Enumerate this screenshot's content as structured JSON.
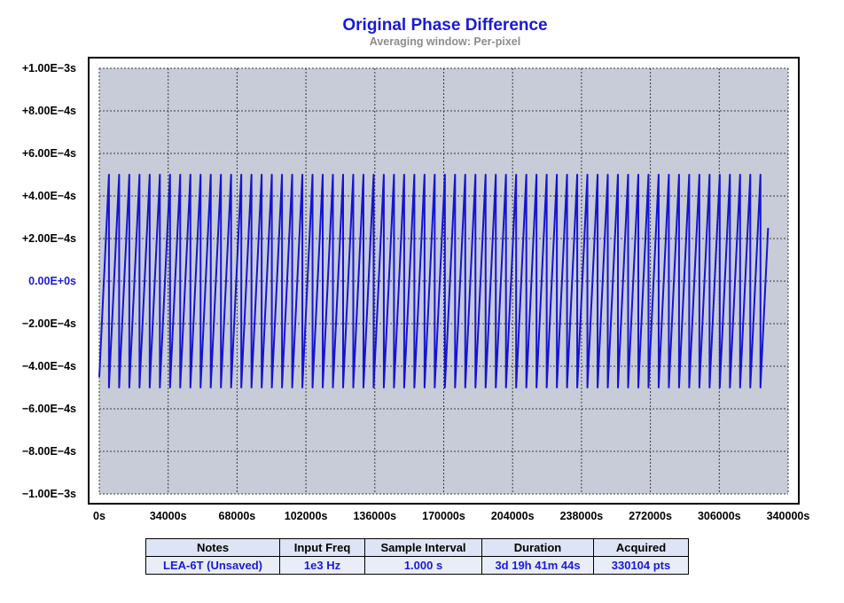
{
  "title": "Original Phase Difference",
  "subtitle": "Averaging window: Per-pixel",
  "chart_data": {
    "type": "line",
    "title": "Original Phase Difference",
    "subtitle": "Averaging window: Per-pixel",
    "xlabel": "",
    "ylabel": "",
    "x_unit": "s",
    "y_unit": "s",
    "xlim": [
      0,
      340000
    ],
    "ylim": [
      -0.001,
      0.001
    ],
    "x_ticks": [
      "0s",
      "34000s",
      "68000s",
      "102000s",
      "136000s",
      "170000s",
      "204000s",
      "238000s",
      "272000s",
      "306000s",
      "340000s"
    ],
    "y_ticks": [
      "+1.00E−3s",
      "+8.00E−4s",
      "+6.00E−4s",
      "+4.00E−4s",
      "+2.00E−4s",
      "0.00E+0s",
      "−2.00E−4s",
      "−4.00E−4s",
      "−6.00E−4s",
      "−8.00E−4s",
      "−1.00E−3s"
    ],
    "grid": true,
    "series": [
      {
        "color": "#1414d2",
        "waveform": "sawtooth",
        "x_start": 0,
        "x_end": 330104,
        "y_min": -0.0005,
        "y_max": 0.0005,
        "wrap_count": 65,
        "y_start": -0.00045,
        "y_end": 0.00025
      }
    ]
  },
  "table": {
    "headers": [
      "Notes",
      "Input Freq",
      "Sample Interval",
      "Duration",
      "Acquired"
    ],
    "values": [
      "LEA-6T (Unsaved)",
      "1e3 Hz",
      "1.000 s",
      "3d 19h 41m 44s",
      "330104 pts"
    ]
  }
}
